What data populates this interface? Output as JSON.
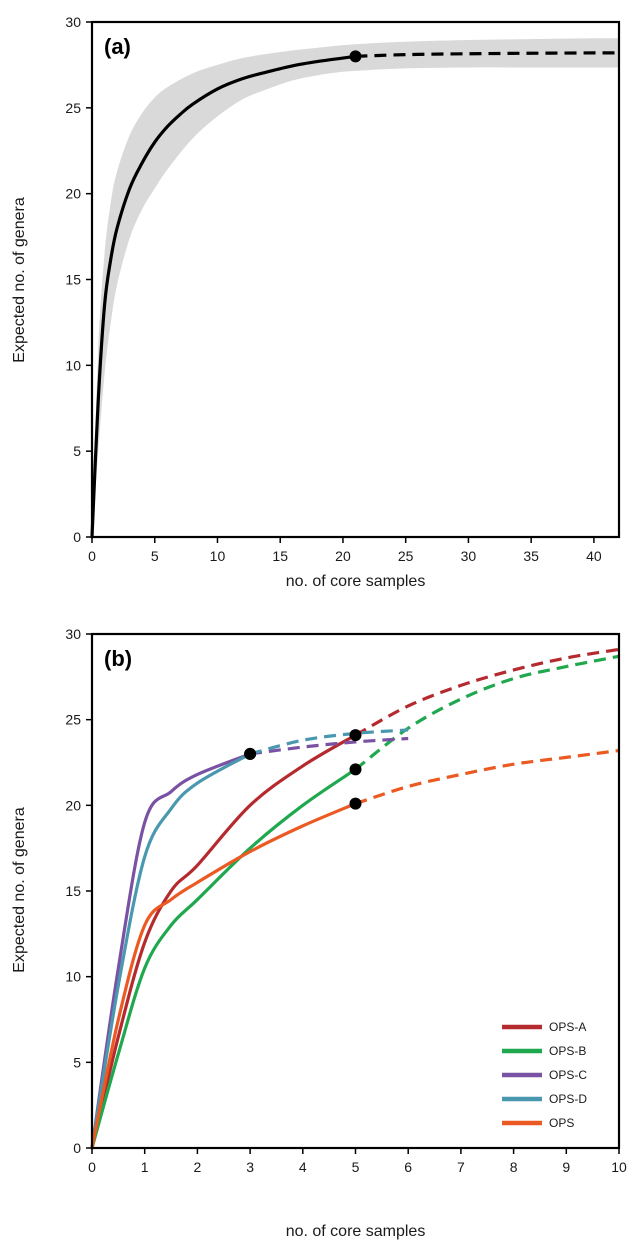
{
  "chart_data": [
    {
      "type": "line",
      "panel_label": "(a)",
      "xlabel": "no. of core samples",
      "ylabel": "Expected no. of genera",
      "xlim": [
        0,
        42
      ],
      "ylim": [
        0,
        30
      ],
      "xticks": [
        0,
        5,
        10,
        15,
        20,
        25,
        30,
        35,
        40
      ],
      "yticks": [
        0,
        5,
        10,
        15,
        20,
        25,
        30
      ],
      "series": [
        {
          "color": "#000000",
          "interpolated": {
            "x": [
              0,
              0.5,
              1,
              1.5,
              2,
              3,
              4,
              5,
              6,
              7,
              8,
              10,
              12,
              14,
              16,
              18,
              20,
              21
            ],
            "y": [
              0,
              8,
              13.5,
              16.2,
              18,
              20.3,
              21.8,
              23,
              23.9,
              24.6,
              25.2,
              26.1,
              26.7,
              27.1,
              27.45,
              27.7,
              27.9,
              28.0
            ]
          },
          "extrapolated": {
            "x": [
              21,
              25,
              30,
              35,
              40,
              42
            ],
            "y": [
              28.0,
              28.1,
              28.15,
              28.18,
              28.2,
              28.2
            ]
          },
          "ci_upper": {
            "x": [
              0,
              0.5,
              1,
              1.5,
              2,
              3,
              4,
              5,
              6,
              8,
              10,
              12,
              14,
              16,
              18,
              20,
              22,
              25,
              30,
              35,
              40,
              42
            ],
            "y": [
              0,
              11,
              16.5,
              19.5,
              21.3,
              23.4,
              24.7,
              25.6,
              26.2,
              27,
              27.5,
              27.9,
              28.15,
              28.35,
              28.5,
              28.65,
              28.75,
              28.85,
              28.95,
              29.0,
              29.05,
              29.05
            ]
          },
          "ci_lower": {
            "x": [
              0,
              0.5,
              1,
              1.5,
              2,
              3,
              4,
              5,
              6,
              8,
              10,
              12,
              14,
              16,
              18,
              20,
              22,
              25,
              30,
              35,
              40,
              42
            ],
            "y": [
              0,
              5,
              9.5,
              12.5,
              14.7,
              17.4,
              19.1,
              20.3,
              21.4,
              23.2,
              24.5,
              25.5,
              26.1,
              26.6,
              26.9,
              27.1,
              27.2,
              27.3,
              27.35,
              27.35,
              27.35,
              27.35
            ]
          },
          "endpoint": {
            "x": 21,
            "y": 28.0
          }
        }
      ]
    },
    {
      "type": "line",
      "panel_label": "(b)",
      "xlabel": "no. of core samples",
      "ylabel": "Expected no. of genera",
      "xlim": [
        0,
        10
      ],
      "ylim": [
        0,
        30
      ],
      "xticks": [
        0,
        1,
        2,
        3,
        4,
        5,
        6,
        7,
        8,
        9,
        10
      ],
      "yticks": [
        0,
        5,
        10,
        15,
        20,
        25,
        30
      ],
      "legend_position": "bottom-right",
      "series": [
        {
          "name": "OPS-A",
          "color": "#b52a2e",
          "interpolated": {
            "x": [
              0,
              0.5,
              1,
              1.5,
              2,
              3,
              4,
              5
            ],
            "y": [
              0,
              6.5,
              12,
              15,
              16.5,
              20,
              22.3,
              24.1
            ]
          },
          "extrapolated": {
            "x": [
              5,
              6,
              7,
              8,
              9,
              10
            ],
            "y": [
              24.1,
              25.8,
              27,
              27.9,
              28.6,
              29.1
            ]
          },
          "endpoint": {
            "x": 5,
            "y": 24.1
          }
        },
        {
          "name": "OPS-B",
          "color": "#1fa84e",
          "interpolated": {
            "x": [
              0,
              0.5,
              1,
              1.5,
              2,
              3,
              4,
              5
            ],
            "y": [
              0,
              5.5,
              10.5,
              13,
              14.5,
              17.5,
              20,
              22.1
            ]
          },
          "extrapolated": {
            "x": [
              5,
              6,
              7,
              8,
              9,
              10
            ],
            "y": [
              22.1,
              24.5,
              26.2,
              27.4,
              28.1,
              28.7
            ]
          },
          "endpoint": {
            "x": 5,
            "y": 22.1
          }
        },
        {
          "name": "OPS-C",
          "color": "#7a52a3",
          "interpolated": {
            "x": [
              0,
              0.5,
              1,
              1.5,
              2,
              3
            ],
            "y": [
              0,
              10.5,
              19,
              20.8,
              21.8,
              23.0
            ]
          },
          "extrapolated": {
            "x": [
              3,
              4,
              5,
              6
            ],
            "y": [
              23.0,
              23.4,
              23.7,
              23.9
            ]
          },
          "endpoint": {
            "x": 3,
            "y": 23.0
          }
        },
        {
          "name": "OPS-D",
          "color": "#4a98b0",
          "interpolated": {
            "x": [
              0,
              0.5,
              1,
              1.5,
              2,
              3
            ],
            "y": [
              0,
              9.5,
              17,
              19.8,
              21.3,
              23.0
            ]
          },
          "extrapolated": {
            "x": [
              3,
              4,
              5,
              6
            ],
            "y": [
              23.0,
              23.8,
              24.2,
              24.4
            ]
          },
          "endpoint": {
            "x": 3,
            "y": 23.0
          }
        },
        {
          "name": "OPS",
          "color": "#ec5a23",
          "interpolated": {
            "x": [
              0,
              0.5,
              1,
              1.5,
              2,
              3,
              4,
              5
            ],
            "y": [
              0,
              7.5,
              13,
              14.5,
              15.5,
              17.3,
              18.8,
              20.1
            ]
          },
          "extrapolated": {
            "x": [
              5,
              6,
              7,
              8,
              9,
              10
            ],
            "y": [
              20.1,
              21.1,
              21.8,
              22.4,
              22.8,
              23.2
            ]
          },
          "endpoint": {
            "x": 5,
            "y": 20.1
          }
        }
      ]
    }
  ]
}
